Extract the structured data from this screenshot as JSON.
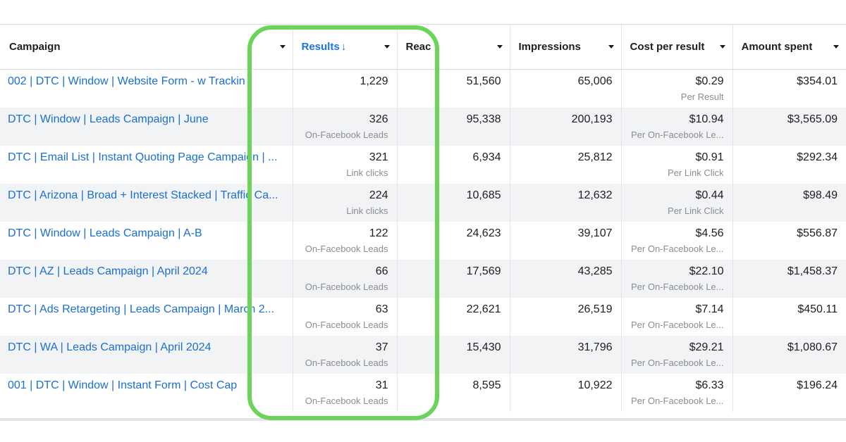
{
  "table": {
    "columns": [
      {
        "label": "Campaign",
        "sorted": false
      },
      {
        "label": "Results",
        "sorted": true,
        "sort_arrow": "↓"
      },
      {
        "label": "Reac",
        "sorted": false
      },
      {
        "label": "Impressions",
        "sorted": false
      },
      {
        "label": "Cost per result",
        "sorted": false
      },
      {
        "label": "Amount spent",
        "sorted": false
      }
    ],
    "rows": [
      {
        "campaign": "002 | DTC | Window | Website Form - w Trackin",
        "results": "1,229",
        "results_sub": "",
        "reach": "51,560",
        "impressions": "65,006",
        "cost": "$0.29",
        "cost_sub": "Per Result",
        "spent": "$354.01"
      },
      {
        "campaign": "DTC | Window | Leads Campaign | June",
        "results": "326",
        "results_sub": "On-Facebook Leads",
        "reach": "95,338",
        "impressions": "200,193",
        "cost": "$10.94",
        "cost_sub": "Per On-Facebook Le...",
        "spent": "$3,565.09"
      },
      {
        "campaign": "DTC | Email List | Instant Quoting Page Campaign | ...",
        "results": "321",
        "results_sub": "Link clicks",
        "reach": "6,934",
        "impressions": "25,812",
        "cost": "$0.91",
        "cost_sub": "Per Link Click",
        "spent": "$292.34"
      },
      {
        "campaign": "DTC | Arizona | Broad + Interest Stacked | Traffic Ca...",
        "results": "224",
        "results_sub": "Link clicks",
        "reach": "10,685",
        "impressions": "12,632",
        "cost": "$0.44",
        "cost_sub": "Per Link Click",
        "spent": "$98.49"
      },
      {
        "campaign": "DTC | Window | Leads Campaign | A-B",
        "results": "122",
        "results_sub": "On-Facebook Leads",
        "reach": "24,623",
        "impressions": "39,107",
        "cost": "$4.56",
        "cost_sub": "Per On-Facebook Le...",
        "spent": "$556.87"
      },
      {
        "campaign": "DTC | AZ | Leads Campaign | April 2024",
        "results": "66",
        "results_sub": "On-Facebook Leads",
        "reach": "17,569",
        "impressions": "43,285",
        "cost": "$22.10",
        "cost_sub": "Per On-Facebook Le...",
        "spent": "$1,458.37"
      },
      {
        "campaign": "DTC | Ads Retargeting | Leads Campaign | March 2...",
        "results": "63",
        "results_sub": "On-Facebook Leads",
        "reach": "22,621",
        "impressions": "26,519",
        "cost": "$7.14",
        "cost_sub": "Per On-Facebook Le...",
        "spent": "$450.11"
      },
      {
        "campaign": "DTC | WA | Leads Campaign | April 2024",
        "results": "37",
        "results_sub": "On-Facebook Leads",
        "reach": "15,430",
        "impressions": "31,796",
        "cost": "$29.21",
        "cost_sub": "Per On-Facebook Le...",
        "spent": "$1,080.67"
      },
      {
        "campaign": "001 | DTC | Window | Instant Form | Cost Cap",
        "results": "31",
        "results_sub": "On-Facebook Leads",
        "reach": "8,595",
        "impressions": "10,922",
        "cost": "$6.33",
        "cost_sub": "Per On-Facebook Le...",
        "spent": "$196.24"
      }
    ]
  },
  "colors": {
    "link": "#1a6fd1",
    "sorted_header": "#1a73e8",
    "highlight": "#6dd45a",
    "row_alt": "#f2f3f5"
  }
}
